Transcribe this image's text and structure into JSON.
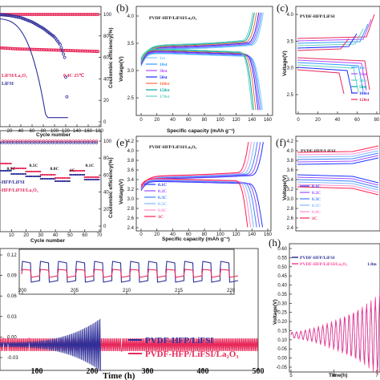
{
  "colors": {
    "red": "#e8285a",
    "blue": "#2e2f9a",
    "pink": "#ff3f95",
    "series_b": [
      "#7ec8ff",
      "#2f9cff",
      "#b04dff",
      "#1d2dff",
      "#ff6a3d",
      "#00a89d",
      "#63d0c0"
    ],
    "series_e": [
      "#1a35ff",
      "#9a4dff",
      "#3d7dff",
      "#7fb8ff",
      "#ff8fd2",
      "#ff1f4f"
    ]
  },
  "chart_data": [
    {
      "id": "a-top",
      "type": "scatter",
      "xlabel": "Cycle number",
      "ylabel_right": "Coulombic efficiency(%)",
      "xticks": [
        "20",
        "40",
        "60",
        "80",
        "100",
        "120",
        "140",
        "160",
        "180"
      ],
      "yticks_right": [
        "0",
        "20",
        "40",
        "60",
        "80",
        "100"
      ],
      "annotations": [
        "0.4C 25℃"
      ],
      "legend": [
        "LiFSI/La₂O₃",
        "LiFSI"
      ],
      "series": [
        {
          "color": "red",
          "x": [
            0,
            20,
            40,
            60,
            80,
            100,
            120,
            140,
            160,
            180
          ],
          "y": [
            100,
            100,
            100,
            100,
            100,
            100,
            100,
            100,
            100,
            100
          ]
        },
        {
          "color": "red",
          "x": [
            0,
            30,
            60,
            90,
            120,
            150,
            180
          ],
          "y": [
            69,
            68,
            67.5,
            67,
            66.5,
            66,
            65.5
          ]
        },
        {
          "color": "blue",
          "x": [
            0,
            20,
            40,
            60,
            80,
            100,
            110,
            118,
            124
          ],
          "y": [
            100,
            99,
            97,
            93,
            87,
            79,
            72,
            60,
            5
          ]
        }
      ]
    },
    {
      "id": "b",
      "type": "line",
      "title": "PVDF-HFP/LiFSI/La₂O₃",
      "xlabel": "Specific capacity (mAh g⁻¹)",
      "ylabel": "Voltage(V)",
      "xlim": [
        0,
        170
      ],
      "ylim": [
        2.5,
        4.0
      ],
      "xticks": [
        "0",
        "20",
        "40",
        "60",
        "80",
        "100",
        "120",
        "140",
        "160"
      ],
      "yticks": [
        "2.5",
        "3.0",
        "3.5",
        "4.0"
      ],
      "series": [
        {
          "name": "1st",
          "charge_end": 164,
          "discharge_end": 163
        },
        {
          "name": "10st",
          "charge_end": 162,
          "discharge_end": 161
        },
        {
          "name": "30st",
          "charge_end": 160,
          "discharge_end": 159
        },
        {
          "name": "50st",
          "charge_end": 158,
          "discharge_end": 157
        },
        {
          "name": "100st",
          "charge_end": 155,
          "discharge_end": 154
        },
        {
          "name": "150st",
          "charge_end": 152,
          "discharge_end": 151
        },
        {
          "name": "170st",
          "charge_end": 150,
          "discharge_end": 149
        }
      ]
    },
    {
      "id": "c",
      "type": "line",
      "title": "PVDF-HFP/LiFSI",
      "ylabel": "Voltage(V)",
      "ylim": [
        2.5,
        4.0
      ],
      "xticks": [
        "0",
        "20",
        "40",
        "60",
        "80"
      ],
      "yticks": [
        "2.5",
        "3.0",
        "3.5",
        "4.0"
      ],
      "series": [
        {
          "name": "1st"
        },
        {
          "name": "10st"
        },
        {
          "name": "30st"
        },
        {
          "name": "50st"
        },
        {
          "name": "100st"
        },
        {
          "name": "120st"
        }
      ]
    },
    {
      "id": "d",
      "type": "scatter",
      "xlabel": "Cycle number",
      "ylabel_right": "Coulombic efficiency(%)",
      "xticks": [
        "0",
        "10",
        "20",
        "30",
        "40",
        "50",
        "60",
        "70"
      ],
      "yticks_right": [
        "0",
        "20",
        "40",
        "60",
        "80",
        "100"
      ],
      "rate_labels": [
        "0.3C",
        "0.5C",
        "0.8C",
        "1C",
        "0.1C"
      ],
      "legend": [
        "-HFP/LiFSI",
        "-HFP/LiFSI/La₂O₃"
      ]
    },
    {
      "id": "e",
      "type": "line",
      "title": "PVDF-HFP/LiFSI/La₂O₃",
      "xlabel": "Specific capacity (mAh g⁻¹)",
      "ylabel": "Voltage(V)",
      "xlim": [
        0,
        170
      ],
      "ylim": [
        2.4,
        4.2
      ],
      "xticks": [
        "0",
        "20",
        "40",
        "60",
        "80",
        "100",
        "120",
        "140",
        "160"
      ],
      "yticks": [
        "2.4",
        "2.6",
        "2.8",
        "3.0",
        "3.2",
        "3.4",
        "3.6",
        "3.8",
        "4.0",
        "4.2"
      ],
      "series": [
        {
          "name": "0.1C",
          "charge_end": 164,
          "discharge_end": 163
        },
        {
          "name": "0.2C",
          "charge_end": 160,
          "discharge_end": 159
        },
        {
          "name": "0.3C",
          "charge_end": 156,
          "discharge_end": 155
        },
        {
          "name": "0.5C",
          "charge_end": 152,
          "discharge_end": 151
        },
        {
          "name": "0.8C",
          "charge_end": 148,
          "discharge_end": 147
        },
        {
          "name": "1C",
          "charge_end": 144,
          "discharge_end": 143
        }
      ]
    },
    {
      "id": "f",
      "type": "line",
      "title": "PVDF-HFP/LiFSI",
      "ylabel": "Voltage(V)",
      "yticks": [
        "2.4",
        "2.6",
        "2.8",
        "3.0",
        "3.2",
        "3.4",
        "3.6",
        "3.8",
        "4.0",
        "4.2"
      ],
      "series": [
        {
          "name": "0.1C"
        },
        {
          "name": "0.2C"
        },
        {
          "name": "0.3C"
        },
        {
          "name": "0.5C"
        },
        {
          "name": "0.8C"
        },
        {
          "name": "1C"
        }
      ]
    },
    {
      "id": "g",
      "type": "line",
      "xlabel": "Time (h)",
      "xticks": [
        "100",
        "200",
        "300",
        "400",
        "500"
      ],
      "yticks": [
        "0.12",
        "0.09",
        "0.06",
        "0.03",
        "0.00",
        "-0.03"
      ],
      "inset_xticks": [
        "200",
        "205",
        "210",
        "215",
        "220"
      ],
      "series": [
        {
          "name": "PVDF-HFP/LiFSI",
          "color": "blue",
          "end_time": 220
        },
        {
          "name": "PVDF-HFP/LiFSI/La₂O₃",
          "color": "red",
          "end_time": 500
        }
      ]
    },
    {
      "id": "h",
      "type": "line",
      "xlabel": "Time(h)",
      "ylabel": "Voltage(V)",
      "yticks": [
        "0.60",
        "0.55",
        "0.50",
        "0.45",
        "0.40",
        "0.35",
        "0.30",
        "0.25",
        "0.20",
        "0.15",
        "0.10",
        "0.05",
        "0.00",
        "-0.05"
      ],
      "xticks": [
        "5",
        "6",
        "7"
      ],
      "annotations": [
        "1.8m"
      ],
      "series": [
        {
          "name": "PVDF-HFP/LiFSI",
          "color": "blue"
        },
        {
          "name": "PVDF-HFP/LiFSI/La₂O₃",
          "color": "pink"
        }
      ]
    }
  ],
  "panels": [
    "(b)",
    "(c)",
    "(e)",
    "(f)",
    "(h)"
  ]
}
